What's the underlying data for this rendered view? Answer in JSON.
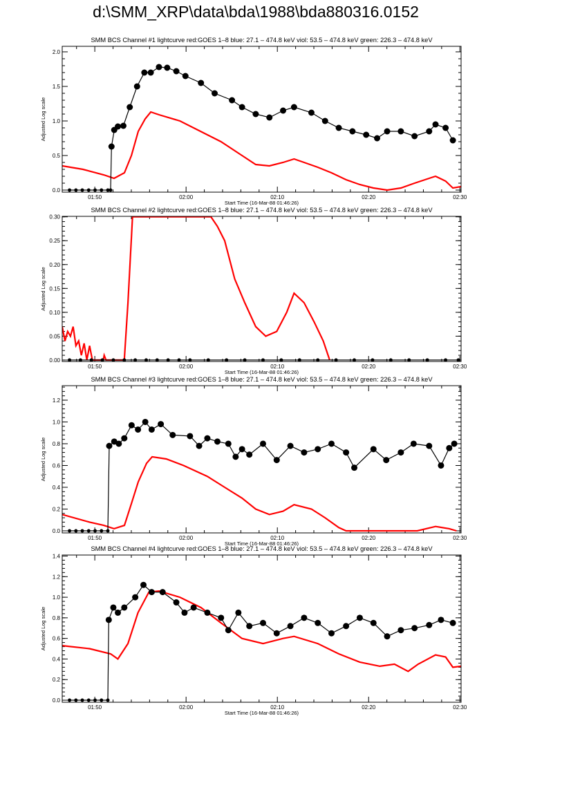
{
  "page_title": "d:\\SMM_XRP\\data\\bda\\1988\\bda880316.0152",
  "colors": {
    "goes": "#ff0000",
    "channel": "#000000",
    "axes": "#000000"
  },
  "chart_data": [
    {
      "type": "line",
      "title": "SMM BCS Channel #1 lightcurve  red:GOES 1–8  blue: 27.1 – 474.8 keV  viol: 53.5 – 474.8 keV  green: 226.3 – 474.8 keV",
      "xlabel": "Start Time (16-Mar-88 01:46:26)",
      "ylabel": "Adjusted Log scale",
      "x_units": "minutes after 01:46:26",
      "xlim": [
        0,
        43.7
      ],
      "ylim": [
        -0.03,
        2.08
      ],
      "xticks": [
        {
          "value": 3.57,
          "label": "01:50"
        },
        {
          "value": 13.57,
          "label": "02:00"
        },
        {
          "value": 23.57,
          "label": "02:10"
        },
        {
          "value": 33.57,
          "label": "02:20"
        },
        {
          "value": 43.57,
          "label": "02:30"
        }
      ],
      "yticks": [
        {
          "value": 0,
          "label": "0.0"
        },
        {
          "value": 0.5,
          "label": "0.5"
        },
        {
          "value": 1.0,
          "label": "1.0"
        },
        {
          "value": 1.5,
          "label": "1.5"
        },
        {
          "value": 2.0,
          "label": "2.0"
        }
      ],
      "series": [
        {
          "name": "GOES 1-8",
          "color": "#ff0000",
          "style": "line",
          "x": [
            0,
            2.27,
            4.55,
            5.68,
            6.82,
            7.58,
            8.33,
            9.09,
            9.7,
            10.6,
            12.9,
            15.15,
            17.4,
            19.7,
            21.2,
            22.7,
            24.2,
            25.4,
            26.5,
            28.0,
            29.5,
            31.1,
            32.6,
            34.1,
            35.6,
            37.1,
            38.6,
            40.2,
            40.9,
            42.0,
            42.8,
            43.7
          ],
          "y": [
            0.35,
            0.3,
            0.22,
            0.17,
            0.25,
            0.5,
            0.85,
            1.03,
            1.13,
            1.09,
            1.0,
            0.85,
            0.7,
            0.5,
            0.37,
            0.35,
            0.4,
            0.45,
            0.4,
            0.33,
            0.25,
            0.15,
            0.08,
            0.03,
            0.0,
            0.03,
            0.1,
            0.17,
            0.2,
            0.13,
            0.03,
            0.05
          ]
        },
        {
          "name": "Channel #1",
          "color": "#000000",
          "style": "line+dots",
          "x": [
            0.8,
            1.5,
            2.2,
            2.9,
            3.6,
            4.3,
            5.0,
            5.3,
            5.4,
            5.7,
            6.1,
            6.7,
            7.4,
            8.2,
            9.0,
            9.7,
            10.6,
            11.5,
            12.5,
            13.5,
            15.2,
            16.7,
            18.6,
            19.7,
            21.2,
            22.7,
            24.2,
            25.4,
            27.3,
            28.8,
            30.3,
            31.8,
            33.3,
            34.5,
            35.6,
            37.1,
            38.6,
            40.2,
            40.9,
            42.0,
            42.8
          ],
          "y": [
            0,
            0,
            0,
            0,
            0,
            0,
            0,
            0,
            0.63,
            0.87,
            0.92,
            0.93,
            1.2,
            1.5,
            1.7,
            1.7,
            1.78,
            1.77,
            1.72,
            1.65,
            1.55,
            1.4,
            1.3,
            1.2,
            1.1,
            1.05,
            1.15,
            1.2,
            1.12,
            1.0,
            0.9,
            0.85,
            0.8,
            0.75,
            0.85,
            0.85,
            0.78,
            0.85,
            0.95,
            0.9,
            0.72
          ]
        }
      ]
    },
    {
      "type": "line",
      "title": "SMM BCS Channel #2 lightcurve  red:GOES 1–8  blue: 27.1 – 474.8 keV  viol: 53.5 – 474.8 keV  green: 226.3 – 474.8 keV",
      "xlabel": "Start Time (16-Mar-88 01:46:26)",
      "ylabel": "Adjusted Log scale",
      "x_units": "minutes after 01:46:26",
      "xlim": [
        0,
        43.7
      ],
      "ylim": [
        -0.003,
        0.301
      ],
      "xticks": [
        {
          "value": 3.57,
          "label": "01:50"
        },
        {
          "value": 13.57,
          "label": "02:00"
        },
        {
          "value": 23.57,
          "label": "02:10"
        },
        {
          "value": 33.57,
          "label": "02:20"
        },
        {
          "value": 43.57,
          "label": "02:30"
        }
      ],
      "yticks": [
        {
          "value": 0,
          "label": "0.00"
        },
        {
          "value": 0.05,
          "label": "0.05"
        },
        {
          "value": 0.1,
          "label": "0.10"
        },
        {
          "value": 0.15,
          "label": "0.15"
        },
        {
          "value": 0.2,
          "label": "0.20"
        },
        {
          "value": 0.25,
          "label": "0.25"
        },
        {
          "value": 0.3,
          "label": "0.30"
        }
      ],
      "series": [
        {
          "name": "GOES 1-8",
          "color": "#ff0000",
          "style": "line",
          "x": [
            0,
            0.3,
            0.6,
            0.9,
            1.2,
            1.5,
            1.8,
            2.1,
            2.4,
            2.7,
            3.0,
            3.3,
            3.6,
            4.5,
            4.6,
            4.8,
            6.8,
            7.2,
            7.7,
            16.3,
            17.0,
            17.8,
            18.9,
            20.0,
            21.2,
            22.3,
            23.5,
            24.6,
            25.4,
            26.5,
            27.6,
            28.6,
            29.3
          ],
          "y": [
            0.07,
            0.04,
            0.06,
            0.05,
            0.07,
            0.03,
            0.04,
            0.01,
            0.035,
            0.0,
            0.03,
            0.0,
            0.0,
            0.0,
            0.01,
            0.0,
            0.0,
            0.12,
            0.3,
            0.3,
            0.28,
            0.25,
            0.17,
            0.12,
            0.07,
            0.05,
            0.06,
            0.1,
            0.14,
            0.12,
            0.08,
            0.04,
            0.0
          ]
        },
        {
          "name": "Channel #2",
          "color": "#000000",
          "style": "line+dots",
          "x": [
            0.8,
            2.0,
            3.2,
            4.4,
            5.6,
            6.8,
            8.0,
            9.2,
            10.4,
            11.6,
            12.8,
            14.0,
            16,
            18,
            20,
            22,
            24,
            26,
            28,
            30,
            32,
            34,
            36,
            38,
            40,
            42,
            43.4
          ],
          "y": [
            0,
            0,
            0,
            0,
            0,
            0,
            0,
            0,
            0,
            0,
            0,
            0,
            0,
            0,
            0,
            0,
            0,
            0,
            0,
            0,
            0,
            0,
            0,
            0,
            0,
            0,
            0
          ]
        }
      ]
    },
    {
      "type": "line",
      "title": "SMM BCS Channel #3 lightcurve  red:GOES 1–8  blue: 27.1 – 474.8 keV  viol: 53.5 – 474.8 keV  green: 226.3 – 474.8 keV",
      "xlabel": "Start Time (16-Mar-88 01:46:26)",
      "ylabel": "Adjusted Log scale",
      "x_units": "minutes after 01:46:26",
      "xlim": [
        0,
        43.7
      ],
      "ylim": [
        -0.019,
        1.333
      ],
      "xticks": [
        {
          "value": 3.57,
          "label": "01:50"
        },
        {
          "value": 13.57,
          "label": "02:00"
        },
        {
          "value": 23.57,
          "label": "02:10"
        },
        {
          "value": 33.57,
          "label": "02:20"
        },
        {
          "value": 43.57,
          "label": "02:30"
        }
      ],
      "yticks": [
        {
          "value": 0,
          "label": "0.0"
        },
        {
          "value": 0.2,
          "label": "0.2"
        },
        {
          "value": 0.4,
          "label": "0.4"
        },
        {
          "value": 0.6,
          "label": "0.6"
        },
        {
          "value": 0.8,
          "label": "0.8"
        },
        {
          "value": 1.0,
          "label": "1.0"
        },
        {
          "value": 1.2,
          "label": "1.2"
        }
      ],
      "series": [
        {
          "name": "GOES 1-8",
          "color": "#ff0000",
          "style": "line",
          "x": [
            0,
            3.0,
            4.55,
            5.68,
            6.82,
            7.58,
            8.33,
            9.24,
            9.85,
            11.4,
            13.3,
            15.9,
            17.8,
            19.7,
            21.2,
            22.7,
            24.2,
            25.4,
            27.3,
            28.8,
            30.3,
            31.1,
            38.9,
            40.9,
            42.4,
            43.2
          ],
          "y": [
            0.15,
            0.08,
            0.05,
            0.02,
            0.05,
            0.25,
            0.45,
            0.62,
            0.68,
            0.66,
            0.6,
            0.5,
            0.4,
            0.3,
            0.2,
            0.15,
            0.18,
            0.24,
            0.2,
            0.12,
            0.03,
            0.0,
            0.0,
            0.04,
            0.02,
            0.0
          ]
        },
        {
          "name": "Channel #3",
          "color": "#000000",
          "style": "line+dots",
          "x": [
            0.8,
            1.5,
            2.2,
            2.9,
            3.6,
            4.3,
            5.0,
            5.15,
            5.7,
            6.2,
            6.8,
            7.6,
            8.3,
            9.1,
            9.8,
            10.8,
            12.1,
            14.0,
            15.0,
            15.9,
            17.0,
            18.2,
            19.0,
            19.7,
            20.5,
            22.0,
            23.5,
            25.0,
            26.5,
            28.0,
            29.5,
            31.1,
            32.0,
            34.1,
            35.5,
            37.1,
            38.5,
            40.2,
            41.5,
            42.4,
            42.95
          ],
          "y": [
            0,
            0,
            0,
            0,
            0,
            0,
            0,
            0.78,
            0.82,
            0.8,
            0.85,
            0.97,
            0.93,
            1.0,
            0.93,
            0.98,
            0.88,
            0.87,
            0.78,
            0.85,
            0.82,
            0.8,
            0.68,
            0.75,
            0.7,
            0.8,
            0.65,
            0.78,
            0.72,
            0.75,
            0.8,
            0.72,
            0.58,
            0.75,
            0.65,
            0.72,
            0.8,
            0.78,
            0.6,
            0.76,
            0.8
          ]
        }
      ]
    },
    {
      "type": "line",
      "title": "SMM BCS Channel #4 lightcurve  red:GOES 1–8  blue: 27.1 – 474.8 keV  viol: 53.5 – 474.8 keV  green: 226.3 – 474.8 keV",
      "xlabel": "Start Time (16-Mar-88 01:46:26)",
      "ylabel": "Adjusted Log scale",
      "x_units": "minutes after 01:46:26",
      "xlim": [
        0,
        43.7
      ],
      "ylim": [
        -0.02,
        1.41
      ],
      "xticks": [
        {
          "value": 3.57,
          "label": "01:50"
        },
        {
          "value": 13.57,
          "label": "02:00"
        },
        {
          "value": 23.57,
          "label": "02:10"
        },
        {
          "value": 33.57,
          "label": "02:20"
        },
        {
          "value": 43.57,
          "label": "02:30"
        }
      ],
      "yticks": [
        {
          "value": 0,
          "label": "0.0"
        },
        {
          "value": 0.2,
          "label": "0.2"
        },
        {
          "value": 0.4,
          "label": "0.4"
        },
        {
          "value": 0.6,
          "label": "0.6"
        },
        {
          "value": 0.8,
          "label": "0.8"
        },
        {
          "value": 1.0,
          "label": "1.0"
        },
        {
          "value": 1.2,
          "label": "1.2"
        },
        {
          "value": 1.4,
          "label": "1.4"
        }
      ],
      "series": [
        {
          "name": "GOES 1-8",
          "color": "#ff0000",
          "style": "line",
          "x": [
            0,
            3.0,
            5.3,
            6.1,
            7.2,
            8.3,
            9.5,
            10.6,
            12.9,
            15.2,
            17.4,
            19.7,
            22.0,
            24.2,
            25.4,
            28.0,
            30.3,
            32.6,
            34.8,
            36.4,
            37.9,
            39.0,
            40.9,
            42.0,
            42.8,
            43.7
          ],
          "y": [
            0.53,
            0.5,
            0.45,
            0.4,
            0.55,
            0.85,
            1.05,
            1.06,
            1.0,
            0.9,
            0.75,
            0.6,
            0.55,
            0.6,
            0.62,
            0.55,
            0.45,
            0.37,
            0.33,
            0.35,
            0.28,
            0.35,
            0.44,
            0.42,
            0.32,
            0.33
          ]
        },
        {
          "name": "Channel #4",
          "color": "#000000",
          "style": "line+dots",
          "x": [
            0.8,
            1.5,
            2.2,
            2.9,
            3.6,
            4.3,
            5.0,
            5.1,
            5.6,
            6.1,
            6.8,
            8.0,
            8.9,
            9.8,
            11.0,
            12.5,
            13.4,
            14.4,
            15.9,
            17.4,
            18.2,
            19.3,
            20.5,
            22.0,
            23.5,
            25.0,
            26.5,
            28.0,
            29.5,
            31.1,
            32.6,
            34.1,
            35.6,
            37.1,
            38.6,
            40.2,
            41.5,
            42.8
          ],
          "y": [
            0,
            0,
            0,
            0,
            0,
            0,
            0,
            0.78,
            0.9,
            0.85,
            0.9,
            1.0,
            1.12,
            1.05,
            1.05,
            0.95,
            0.85,
            0.9,
            0.85,
            0.8,
            0.68,
            0.85,
            0.72,
            0.75,
            0.65,
            0.72,
            0.8,
            0.75,
            0.65,
            0.72,
            0.8,
            0.75,
            0.62,
            0.68,
            0.7,
            0.73,
            0.78,
            0.75
          ]
        }
      ]
    }
  ]
}
